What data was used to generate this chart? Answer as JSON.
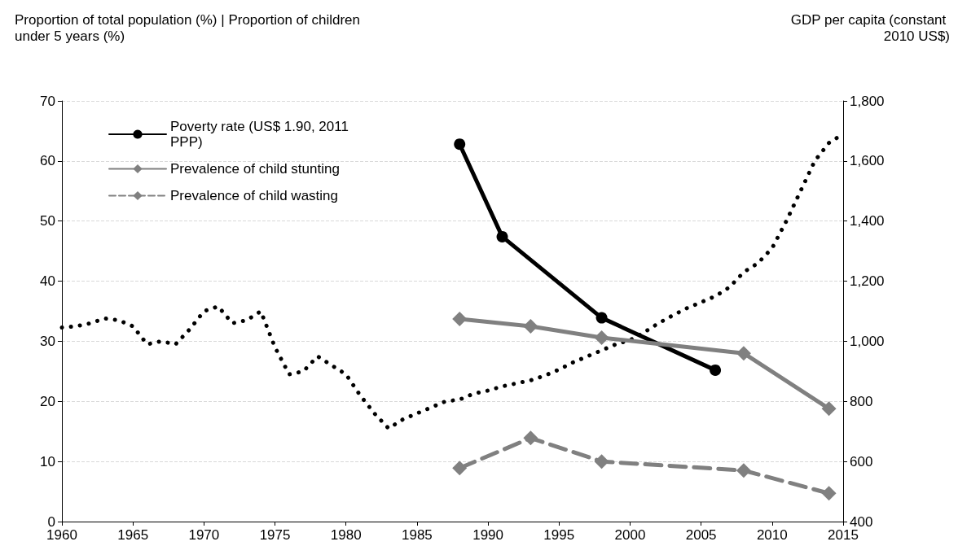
{
  "chart_data": {
    "type": "line",
    "ylabel": "Proportion of total population (%) | Proportion of children under 5 years (%)",
    "y2label": "GDP per capita (constant 2010 US$)",
    "xlim": [
      1960,
      2015
    ],
    "xticks": [
      1960,
      1965,
      1970,
      1975,
      1980,
      1985,
      1990,
      1995,
      2000,
      2005,
      2010,
      2015
    ],
    "ylim": [
      0,
      70
    ],
    "yticks": [
      0,
      10,
      20,
      30,
      40,
      50,
      60,
      70
    ],
    "y2lim": [
      400,
      1800
    ],
    "y2ticks": [
      {
        "value": 400,
        "label": "400"
      },
      {
        "value": 600,
        "label": "600"
      },
      {
        "value": 800,
        "label": "800"
      },
      {
        "value": 1000,
        "label": "1,000"
      },
      {
        "value": 1200,
        "label": "1,200"
      },
      {
        "value": 1400,
        "label": "1,400"
      },
      {
        "value": 1600,
        "label": "1,600"
      },
      {
        "value": 1800,
        "label": "1,800"
      }
    ],
    "grid": "y",
    "legend": "top left",
    "series": [
      {
        "name": "Poverty rate (US$ 1.90, 2011 PPP)",
        "color": "#000000",
        "marker": "circle",
        "line_style": "solid",
        "x": [
          1988,
          1991,
          1998,
          2006
        ],
        "values": [
          62.8,
          47.4,
          33.9,
          25.2
        ]
      },
      {
        "name": "Prevalence of child stunting",
        "color": "#808080",
        "marker": "diamond",
        "line_style": "solid",
        "x": [
          1988,
          1993,
          1998,
          2008,
          2014
        ],
        "values": [
          33.7,
          32.5,
          30.6,
          28,
          18.8
        ]
      },
      {
        "name": "Prevalence of child wasting",
        "color": "#808080",
        "marker": "diamond",
        "line_style": "dashed",
        "x": [
          1988,
          1993,
          1998,
          2008,
          2014
        ],
        "values": [
          8.9,
          13.9,
          10,
          8.5,
          4.7
        ]
      },
      {
        "color": "#000000",
        "marker": "none",
        "line_style": "dotted",
        "axis": "y2",
        "x": [
          1960,
          1961,
          1962,
          1963,
          1964,
          1965,
          1966,
          1967,
          1968,
          1969,
          1970,
          1971,
          1972,
          1973,
          1974,
          1975,
          1976,
          1977,
          1978,
          1979,
          1980,
          1981,
          1982,
          1983,
          1984,
          1985,
          1986,
          1987,
          1988,
          1989,
          1990,
          1991,
          1992,
          1993,
          1994,
          1995,
          1996,
          1997,
          1998,
          1999,
          2000,
          2001,
          2002,
          2003,
          2004,
          2005,
          2006,
          2007,
          2008,
          2009,
          2010,
          2011,
          2012,
          2013,
          2014,
          2015
        ],
        "values": [
          1046,
          1050,
          1060,
          1076,
          1070,
          1050,
          990,
          1000,
          990,
          1040,
          1100,
          1116,
          1060,
          1070,
          1100,
          980,
          890,
          900,
          950,
          920,
          890,
          820,
          760,
          710,
          740,
          760,
          780,
          800,
          806,
          826,
          836,
          850,
          860,
          870,
          886,
          906,
          930,
          950,
          970,
          990,
          1004,
          1030,
          1060,
          1086,
          1110,
          1130,
          1150,
          1180,
          1230,
          1260,
          1310,
          1400,
          1500,
          1600,
          1660,
          1690
        ]
      }
    ]
  }
}
